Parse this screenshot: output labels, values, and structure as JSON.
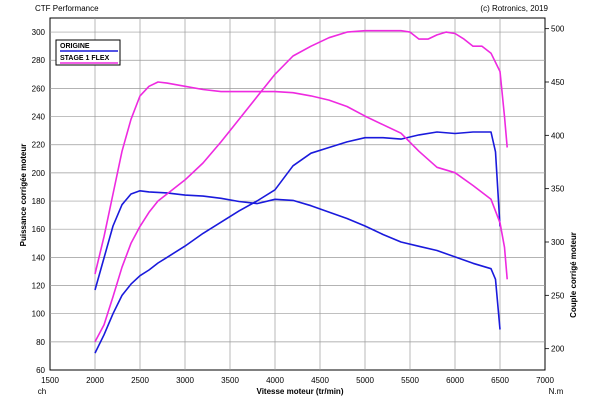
{
  "header": {
    "left": "CTF Performance",
    "right": "(c) Rotronics, 2019"
  },
  "chart_data": {
    "type": "line",
    "xlabel": "Vitesse moteur (tr/min)",
    "ylabel_left": "Puissance corrigée moteur",
    "ylabel_right": "Couple corrigé moteur",
    "unit_left": "ch",
    "unit_right": "N.m",
    "xlim": [
      1500,
      7000
    ],
    "ylim_left": [
      60,
      310
    ],
    "ylim_right": [
      180,
      510
    ],
    "xticks": [
      1500,
      2000,
      2500,
      3000,
      3500,
      4000,
      4500,
      5000,
      5500,
      6000,
      6500,
      7000
    ],
    "yticks_left": [
      60,
      80,
      100,
      120,
      140,
      160,
      180,
      200,
      220,
      240,
      260,
      280,
      300
    ],
    "yticks_right": [
      200,
      250,
      300,
      350,
      400,
      450,
      500
    ],
    "grid": true,
    "legend_position": "top-left",
    "series": [
      {
        "name": "ORIGINE",
        "quantity": "power",
        "axis": "left",
        "color": "#1a1adc",
        "x": [
          2000,
          2100,
          2200,
          2300,
          2400,
          2500,
          2600,
          2700,
          2800,
          3000,
          3200,
          3400,
          3600,
          3800,
          4000,
          4200,
          4400,
          4600,
          4800,
          5000,
          5200,
          5400,
          5600,
          5800,
          6000,
          6200,
          6400,
          6450,
          6500
        ],
        "values": [
          72,
          85,
          100,
          113,
          121,
          127,
          131,
          136,
          140,
          148,
          157,
          165,
          173,
          180,
          188,
          205,
          214,
          218,
          222,
          225,
          225,
          224,
          227,
          229,
          228,
          229,
          229,
          215,
          162
        ]
      },
      {
        "name": "ORIGINE",
        "quantity": "torque",
        "axis": "right",
        "color": "#1a1adc",
        "x": [
          2000,
          2100,
          2200,
          2300,
          2400,
          2500,
          2600,
          2800,
          3000,
          3200,
          3400,
          3600,
          3800,
          4000,
          4200,
          4400,
          4600,
          4800,
          5000,
          5200,
          5400,
          5600,
          5800,
          6000,
          6200,
          6400,
          6450,
          6500
        ],
        "values": [
          255,
          285,
          315,
          335,
          345,
          348,
          347,
          346,
          344,
          343,
          341,
          338,
          336,
          340,
          339,
          334,
          328,
          322,
          315,
          307,
          300,
          296,
          292,
          286,
          280,
          275,
          265,
          218
        ]
      },
      {
        "name": "STAGE 1 FLEX",
        "quantity": "power",
        "axis": "left",
        "color": "#ee2ae0",
        "x": [
          2000,
          2100,
          2200,
          2300,
          2400,
          2500,
          2600,
          2700,
          2800,
          3000,
          3200,
          3400,
          3600,
          3800,
          4000,
          4200,
          4400,
          4600,
          4800,
          5000,
          5200,
          5400,
          5500,
          5600,
          5700,
          5800,
          5900,
          6000,
          6100,
          6200,
          6300,
          6400,
          6500,
          6550,
          6580
        ],
        "values": [
          80,
          92,
          112,
          133,
          150,
          162,
          172,
          180,
          185,
          195,
          207,
          222,
          238,
          254,
          270,
          283,
          290,
          296,
          300,
          301,
          301,
          301,
          300,
          295,
          295,
          298,
          300,
          299,
          295,
          290,
          290,
          285,
          272,
          240,
          218
        ]
      },
      {
        "name": "STAGE 1 FLEX",
        "quantity": "torque",
        "axis": "right",
        "color": "#ee2ae0",
        "x": [
          2000,
          2100,
          2200,
          2300,
          2400,
          2500,
          2600,
          2700,
          2800,
          3000,
          3200,
          3400,
          3600,
          3800,
          4000,
          4200,
          4400,
          4600,
          4800,
          5000,
          5200,
          5400,
          5600,
          5800,
          6000,
          6200,
          6400,
          6500,
          6550,
          6580
        ],
        "values": [
          270,
          305,
          345,
          385,
          415,
          437,
          446,
          450,
          449,
          446,
          443,
          441,
          441,
          441,
          441,
          440,
          437,
          433,
          427,
          418,
          410,
          402,
          385,
          370,
          365,
          353,
          340,
          318,
          295,
          265
        ]
      }
    ]
  }
}
